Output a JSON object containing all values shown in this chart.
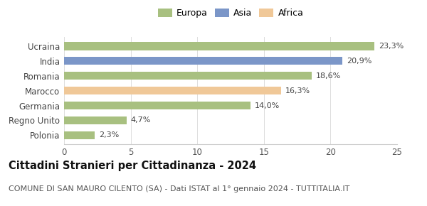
{
  "categories": [
    "Ucraina",
    "India",
    "Romania",
    "Marocco",
    "Germania",
    "Regno Unito",
    "Polonia"
  ],
  "values": [
    23.3,
    20.9,
    18.6,
    16.3,
    14.0,
    4.7,
    2.3
  ],
  "bar_colors": [
    "#a8c080",
    "#7b96c8",
    "#a8c080",
    "#f0c898",
    "#a8c080",
    "#a8c080",
    "#a8c080"
  ],
  "labels": [
    "23,3%",
    "20,9%",
    "18,6%",
    "16,3%",
    "14,0%",
    "4,7%",
    "2,3%"
  ],
  "legend": [
    {
      "label": "Europa",
      "color": "#a8c080"
    },
    {
      "label": "Asia",
      "color": "#7b96c8"
    },
    {
      "label": "Africa",
      "color": "#f0c898"
    }
  ],
  "xlim": [
    0,
    25
  ],
  "xticks": [
    0,
    5,
    10,
    15,
    20,
    25
  ],
  "title": "Cittadini Stranieri per Cittadinanza - 2024",
  "subtitle": "COMUNE DI SAN MAURO CILENTO (SA) - Dati ISTAT al 1° gennaio 2024 - TUTTITALIA.IT",
  "title_fontsize": 10.5,
  "subtitle_fontsize": 8,
  "bar_height": 0.55,
  "label_fontsize": 8,
  "ytick_fontsize": 8.5,
  "xtick_fontsize": 8.5,
  "background_color": "#ffffff"
}
